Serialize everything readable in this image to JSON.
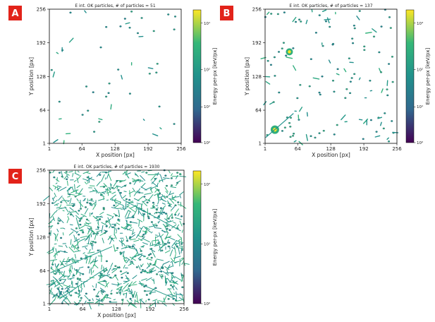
{
  "chart_data": [
    {
      "type": "heatmap",
      "panel_label": "A",
      "title": "E int. OK particles, # of particles = 51",
      "xlabel": "X position [px]",
      "ylabel": "Y position [px]",
      "xlim": [
        1,
        256
      ],
      "ylim": [
        1,
        256
      ],
      "xticks": [
        "1",
        "64",
        "128",
        "192",
        "256"
      ],
      "yticks": [
        "1",
        "64",
        "128",
        "192",
        "256"
      ],
      "colorbar_label": "Energy per-px [keV/px]",
      "colorbar_ticks": [
        "10¹",
        "10²",
        "10¹",
        "10⁰"
      ],
      "particles": 51,
      "colormap": [
        "#440154",
        "#31688e",
        "#21918c",
        "#35b779",
        "#fde725"
      ]
    },
    {
      "type": "heatmap",
      "panel_label": "B",
      "title": "E int. OK particles, # of particles = 137",
      "xlabel": "X position [px]",
      "ylabel": "Y position [px]",
      "xlim": [
        1,
        256
      ],
      "ylim": [
        1,
        256
      ],
      "xticks": [
        "1",
        "64",
        "128",
        "192",
        "256"
      ],
      "yticks": [
        "1",
        "64",
        "128",
        "192",
        "256"
      ],
      "colorbar_label": "Energy per-px [keV/px]",
      "colorbar_ticks": [
        "10³",
        "10²",
        "10¹",
        "10⁰"
      ],
      "particles": 137,
      "colormap": [
        "#440154",
        "#31688e",
        "#21918c",
        "#35b779",
        "#fde725"
      ]
    },
    {
      "type": "heatmap",
      "panel_label": "C",
      "title": "E int. OK particles, # of particles = 1930",
      "xlabel": "X position [px]",
      "ylabel": "Y position [px]",
      "xlim": [
        1,
        256
      ],
      "ylim": [
        1,
        256
      ],
      "xticks": [
        "1",
        "64",
        "128",
        "192",
        "256"
      ],
      "yticks": [
        "1",
        "64",
        "128",
        "192",
        "256"
      ],
      "colorbar_label": "Energy per-px [keV/px]",
      "colorbar_ticks": [
        "10²",
        "10¹",
        "10⁰"
      ],
      "particles": 1930,
      "colormap": [
        "#440154",
        "#31688e",
        "#21918c",
        "#35b779",
        "#fde725"
      ]
    }
  ],
  "badge_color": "#e2231a"
}
